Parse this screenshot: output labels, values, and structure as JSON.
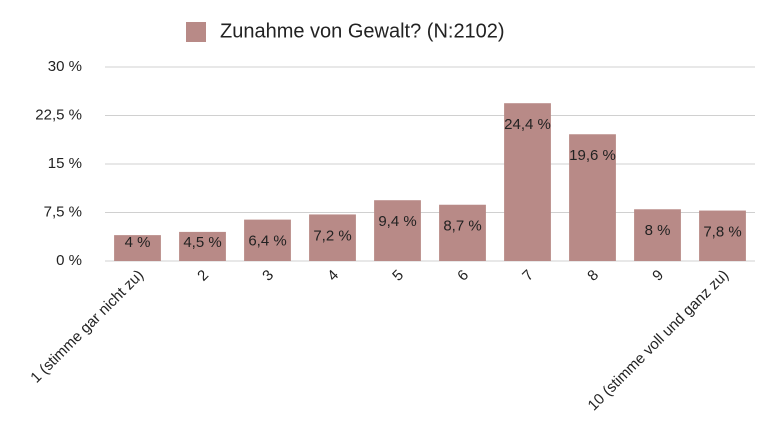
{
  "chart_data": {
    "type": "bar",
    "categories": [
      "1 (stimme gar nicht zu)",
      "2",
      "3",
      "4",
      "5",
      "6",
      "7",
      "8",
      "9",
      "10 (stimme voll und ganz zu)"
    ],
    "series": [
      {
        "name": "Zunahme von Gewalt? (N:2102)",
        "color": "#b88a87",
        "values": [
          4,
          4.5,
          6.4,
          7.2,
          9.4,
          8.7,
          24.4,
          19.6,
          8,
          7.8
        ],
        "value_labels": [
          "4 %",
          "4,5 %",
          "6,4 %",
          "7,2 %",
          "9,4 %",
          "8,7 %",
          "24,4 %",
          "19,6 %",
          "8 %",
          "7,8 %"
        ]
      }
    ],
    "ylim": [
      0,
      30
    ],
    "yticks": [
      {
        "value": 0,
        "label": "0 %"
      },
      {
        "value": 7.5,
        "label": "7,5 %"
      },
      {
        "value": 15,
        "label": "15 %"
      },
      {
        "value": 22.5,
        "label": "22,5 %"
      },
      {
        "value": 30,
        "label": "30 %"
      }
    ],
    "grid": true,
    "legend": "top"
  }
}
